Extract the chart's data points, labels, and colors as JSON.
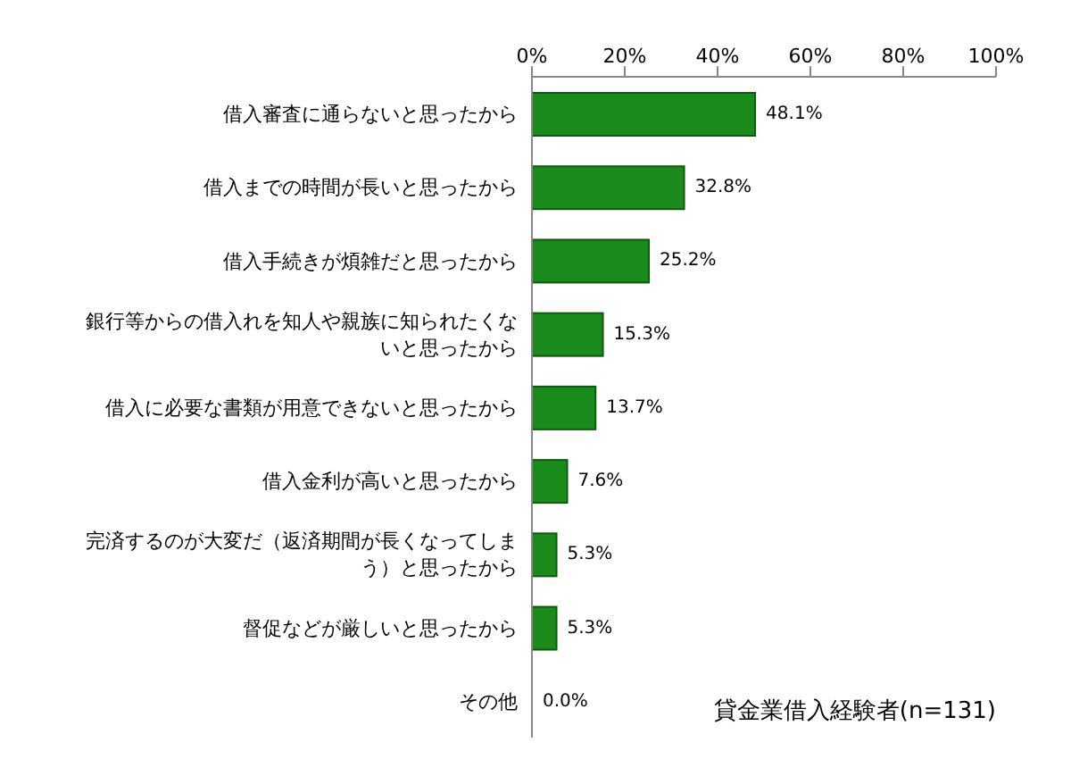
{
  "chart_data": {
    "type": "bar",
    "orientation": "horizontal",
    "categories": [
      "借入審査に通らないと思ったから",
      "借入までの時間が長いと思ったから",
      "借入手続きが煩雑だと思ったから",
      "銀行等からの借入れを知人や親族に知られたくないと思ったから",
      "借入に必要な書類が用意できないと思ったから",
      "借入金利が高いと思ったから",
      "完済するのが大変だ（返済期間が長くなってしまう）と思ったから",
      "督促などが厳しいと思ったから",
      "その他"
    ],
    "values": [
      48.1,
      32.8,
      25.2,
      15.3,
      13.7,
      7.6,
      5.3,
      5.3,
      0.0
    ],
    "value_labels": [
      "48.1%",
      "32.8%",
      "25.2%",
      "15.3%",
      "13.7%",
      "7.6%",
      "5.3%",
      "5.3%",
      "0.0%"
    ],
    "color": "#1a8a1a",
    "xlim": [
      0,
      100
    ],
    "xticks": [
      {
        "value": 0,
        "label": "0%"
      },
      {
        "value": 20,
        "label": "20%"
      },
      {
        "value": 40,
        "label": "40%"
      },
      {
        "value": 60,
        "label": "60%"
      },
      {
        "value": 80,
        "label": "80%"
      },
      {
        "value": 100,
        "label": "100%"
      }
    ],
    "annotations": [
      "貸金業借入経験者(n=131)"
    ],
    "grid": false,
    "legend": false
  }
}
